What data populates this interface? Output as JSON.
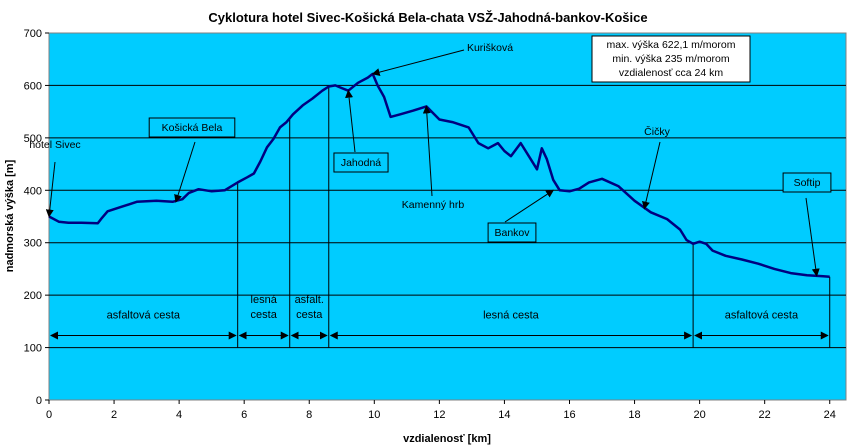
{
  "chart_data": {
    "type": "line",
    "title": "Cyklotura hotel Sivec-Košická Bela-chata VSŽ-Jahodná-bankov-Košice",
    "xlabel": "vzdialenosť [km]",
    "ylabel": "nadmorská výška [m]",
    "xlim": [
      0,
      24.5
    ],
    "ylim": [
      0,
      700
    ],
    "xticks": [
      0,
      2,
      4,
      6,
      8,
      10,
      12,
      14,
      16,
      18,
      20,
      22,
      24
    ],
    "yticks": [
      0,
      100,
      200,
      300,
      400,
      500,
      600,
      700
    ],
    "grid": "horizontal",
    "plot_background": "#00CCFF",
    "line_color": "#000080",
    "series": [
      {
        "x": [
          0,
          0.3,
          0.6,
          1.0,
          1.5,
          1.6,
          1.8,
          2.2,
          2.7,
          3.3,
          3.8,
          4.1,
          4.3,
          4.6,
          5.0,
          5.4,
          5.8,
          6.1,
          6.3,
          6.5,
          6.7,
          6.9,
          7.1,
          7.3,
          7.5,
          7.8,
          8.1,
          8.4,
          8.6,
          8.8,
          9.0,
          9.2,
          9.5,
          9.8,
          9.95,
          10.1,
          10.3,
          10.5,
          10.8,
          11.2,
          11.6,
          12.0,
          12.4,
          12.9,
          13.2,
          13.5,
          13.8,
          14.0,
          14.2,
          14.5,
          14.8,
          15.0,
          15.15,
          15.3,
          15.5,
          15.7,
          16.0,
          16.3,
          16.6,
          17.0,
          17.5,
          18.0,
          18.5,
          19.0,
          19.4,
          19.6,
          19.8,
          20.0,
          20.2,
          20.4,
          20.8,
          21.3,
          21.8,
          22.3,
          22.8,
          23.3,
          23.8,
          24.0
        ],
        "y": [
          350,
          340,
          338,
          338,
          337,
          345,
          360,
          368,
          378,
          380,
          378,
          383,
          395,
          402,
          398,
          400,
          415,
          425,
          432,
          455,
          482,
          498,
          520,
          530,
          545,
          562,
          575,
          590,
          598,
          600,
          595,
          590,
          605,
          615,
          622,
          600,
          578,
          540,
          545,
          552,
          560,
          535,
          530,
          520,
          490,
          480,
          490,
          475,
          465,
          490,
          460,
          440,
          480,
          460,
          420,
          400,
          398,
          403,
          415,
          422,
          408,
          380,
          358,
          345,
          325,
          305,
          298,
          302,
          298,
          285,
          275,
          268,
          260,
          250,
          242,
          238,
          236,
          235
        ]
      }
    ],
    "point_labels": [
      {
        "text": "hotel Sivec",
        "x": 0,
        "y": 350
      },
      {
        "text": "Košická Bela",
        "x": 3.9,
        "y": 378
      },
      {
        "text": "Jahodná",
        "x": 9.2,
        "y": 590
      },
      {
        "text": "Kurišková",
        "x": 9.95,
        "y": 622
      },
      {
        "text": "Kamenný hrb",
        "x": 11.6,
        "y": 560
      },
      {
        "text": "Bankov",
        "x": 15.5,
        "y": 400
      },
      {
        "text": "Čičky",
        "x": 18.3,
        "y": 365
      },
      {
        "text": "Softip",
        "x": 23.6,
        "y": 237
      }
    ],
    "segments": [
      {
        "label": "asfaltová cesta",
        "x0": 0,
        "x1": 5.8
      },
      {
        "label": "lesná cesta",
        "x0": 5.8,
        "x1": 7.4
      },
      {
        "label": "asfalt. cesta",
        "x0": 7.4,
        "x1": 8.6
      },
      {
        "label": "lesná cesta",
        "x0": 8.6,
        "x1": 19.8
      },
      {
        "label": "asfaltová cesta",
        "x0": 19.8,
        "x1": 24.0
      }
    ],
    "info_box": [
      "max. výška 622,1 m/morom",
      "min. výška 235 m/morom",
      "vzdialenosť cca 24 km"
    ]
  }
}
